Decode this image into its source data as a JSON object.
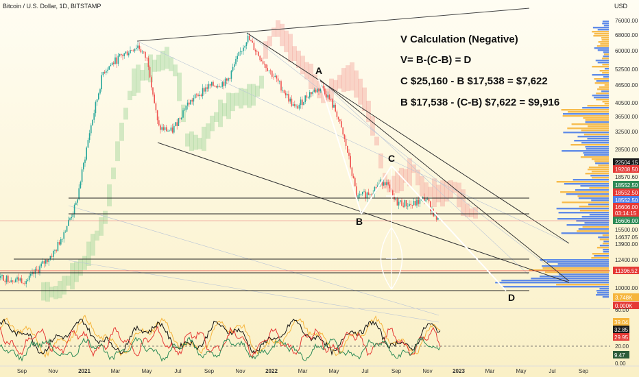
{
  "header": {
    "symbol": "Bitcoin / U.S. Dollar, 1D, BITSTAMP",
    "currency": "USD"
  },
  "annotations": {
    "title": "V Calculation (Negative)",
    "formula": "V= B-(C-B) = D",
    "line1": "C $25,160 - B $17,538 = $7,622",
    "line2": "B $17,538 - (C-B) $7,622 = $9,916"
  },
  "points": {
    "A": "A",
    "B": "B",
    "C": "C",
    "D": "D"
  },
  "colors": {
    "bull": "#26a69a",
    "bear": "#ef5350",
    "cloud_up": "#9fd49a",
    "cloud_down": "#f4a79d",
    "volume_blue": "#4f7fe8",
    "volume_orange": "#f6b53c"
  },
  "chart_data": {
    "type": "candlestick",
    "symbol": "Bitcoin / U.S. Dollar",
    "interval": "1D",
    "exchange": "BITSTAMP",
    "y_scale": "log",
    "ylim": [
      9200,
      80000
    ],
    "y_ticks": [
      "76000.00",
      "68000.00",
      "60000.00",
      "52500.00",
      "46500.00",
      "40500.00",
      "36500.00",
      "32500.00",
      "28500.00",
      "22504.15",
      "19208.50",
      "18570.60",
      "18552.50",
      "18552.50",
      "18552.50",
      "16606.00",
      "03:14:15",
      "16606.00",
      "15500.00",
      "14637.05",
      "13900.00",
      "12400.00",
      "11396.52",
      "10000.00",
      "3.748K",
      "0.000K"
    ],
    "x_ticks": [
      "Sep",
      "Nov",
      "2021",
      "Mar",
      "May",
      "Jul",
      "Sep",
      "Nov",
      "2022",
      "Mar",
      "May",
      "Jul",
      "Sep",
      "Nov",
      "2023",
      "Mar",
      "May",
      "Jul",
      "Sep"
    ],
    "levels": {
      "A": 48000,
      "B": 17538,
      "C": 25160,
      "D": 9916
    },
    "oscillator": {
      "y_ticks": [
        "60.00",
        "39.04",
        "32.85",
        "29.95",
        "20.00",
        "9.47",
        "0.00"
      ]
    }
  }
}
